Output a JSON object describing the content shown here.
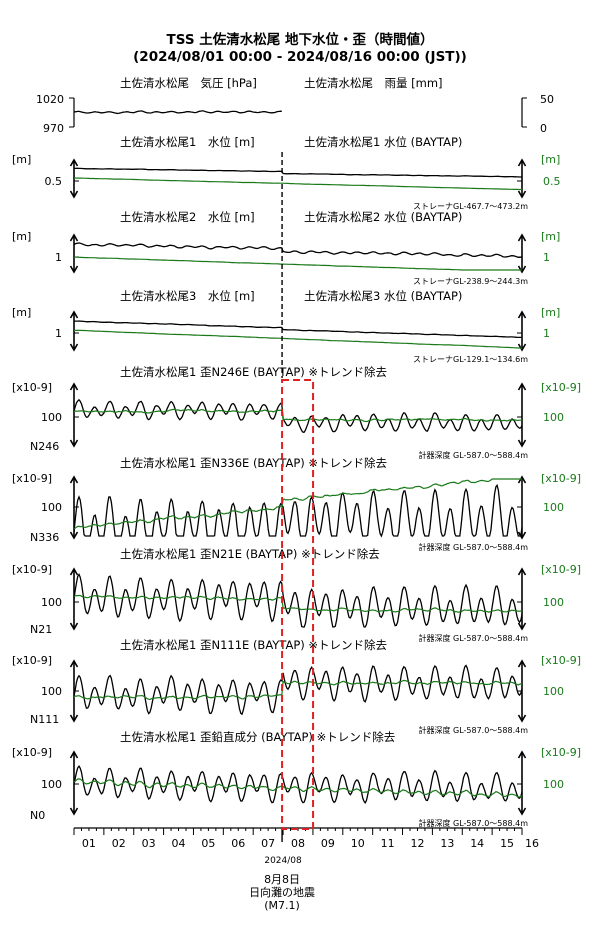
{
  "title": "TSS 土佐清水松尾 地下水位・歪（時間値）",
  "subtitle": "(2024/08/01 00:00 - 2024/08/16 00:00 (JST))",
  "colors": {
    "primary": "#000000",
    "secondary": "#1a7a1a",
    "event": "#e02020"
  },
  "x_axis": {
    "ticks": [
      "01",
      "02",
      "03",
      "04",
      "05",
      "06",
      "07",
      "08",
      "09",
      "10",
      "11",
      "12",
      "13",
      "14",
      "15",
      "16"
    ],
    "year_month": "2024/08"
  },
  "event": {
    "day": 8.0,
    "label_date": "8月8日",
    "label_name": "日向灘の地震",
    "label_mag": "(M7.1)"
  },
  "chart_data": [
    {
      "type": "line",
      "panel": "pressure_rain",
      "title_left": "土佐清水松尾　気圧 [hPa]",
      "title_right": "土佐清水松尾　雨量 [mm]",
      "left_ticks": [
        "1020",
        "970"
      ],
      "right_ticks": [
        "50",
        "0"
      ],
      "ylim_left": [
        970,
        1020
      ],
      "ylim_right": [
        0,
        50
      ],
      "series": [
        {
          "name": "気圧",
          "base": 996,
          "trend": -1,
          "amp": 1.5,
          "noise": 0.6
        }
      ]
    },
    {
      "type": "line",
      "panel": "water1",
      "title_left": "土佐清水松尾1　水位 [m]",
      "title_right": "土佐清水松尾1 水位 (BAYTAP)",
      "unit_left": "[m]",
      "unit_right": "[m]",
      "left_ticks": [
        "0.5"
      ],
      "right_ticks": [
        "0.5"
      ],
      "note": "ストレーナGL-467.7～473.2m",
      "series": [
        {
          "name": "水位",
          "base": 0.74,
          "trend": -0.12,
          "step": -0.04,
          "amp": 0.003,
          "noise": 0.002,
          "ylim": [
            0.2,
            0.9
          ]
        },
        {
          "name": "水位 (BAYTAP)",
          "base": 0.56,
          "trend": -0.22,
          "step": 0.0,
          "amp": 0.0,
          "noise": 0.002,
          "ylim": [
            0.2,
            0.9
          ]
        }
      ]
    },
    {
      "type": "line",
      "panel": "water2",
      "title_left": "土佐清水松尾2　水位 [m]",
      "title_right": "土佐清水松尾2 水位 (BAYTAP)",
      "unit_left": "[m]",
      "unit_right": "[m]",
      "left_ticks": [
        "1"
      ],
      "right_ticks": [
        "1"
      ],
      "note": "ストレーナGL-238.9～244.3m",
      "series": [
        {
          "name": "水位",
          "base": 1.36,
          "trend": -0.18,
          "step": -0.06,
          "amp": 0.025,
          "noise": 0.008,
          "ylim": [
            0.8,
            1.55
          ]
        },
        {
          "name": "水位 (BAYTAP)",
          "base": 1.1,
          "trend": -0.3,
          "step": 0.0,
          "amp": 0.0,
          "noise": 0.003,
          "ylim": [
            0.8,
            1.55
          ]
        }
      ]
    },
    {
      "type": "line",
      "panel": "water3",
      "title_left": "土佐清水松尾3　水位 [m]",
      "title_right": "土佐清水松尾3 水位 (BAYTAP)",
      "unit_left": "[m]",
      "unit_right": "[m]",
      "left_ticks": [
        "1"
      ],
      "right_ticks": [
        "1"
      ],
      "note": "ストレーナGL-129.1～134.6m",
      "series": [
        {
          "name": "水位",
          "base": 1.32,
          "trend": -0.28,
          "step": -0.04,
          "amp": 0.004,
          "noise": 0.003,
          "ylim": [
            0.75,
            1.5
          ]
        },
        {
          "name": "水位 (BAYTAP)",
          "base": 1.14,
          "trend": -0.35,
          "step": 0.0,
          "amp": 0.0,
          "noise": 0.003,
          "ylim": [
            0.75,
            1.5
          ]
        }
      ]
    },
    {
      "type": "line",
      "panel": "strain_N246E",
      "title": "土佐清水松尾1 歪N246E (BAYTAP) ※トレンド除去",
      "unit_left": "[x10-9]",
      "unit_right": "[x10-9]",
      "left_ticks": [
        "100"
      ],
      "right_ticks": [
        "100"
      ],
      "component": "N246",
      "note": "計器深度 GL-587.0～588.4m",
      "series": [
        {
          "name": "歪N246E",
          "base": 108,
          "trend": 0,
          "step": -20,
          "amp": 14,
          "noise": 2,
          "ylim": [
            50,
            150
          ]
        },
        {
          "name": "歪N246E (BAYTAP)",
          "base": 106,
          "trend": 0,
          "step": -14,
          "amp": 1,
          "noise": 1.5,
          "ylim": [
            50,
            150
          ]
        }
      ]
    },
    {
      "type": "line",
      "panel": "strain_N336E",
      "title": "土佐清水松尾1 歪N336E (BAYTAP) ※トレンド除去",
      "unit_left": "[x10-9]",
      "unit_right": "[x10-9]",
      "left_ticks": [
        "100"
      ],
      "right_ticks": [
        "100"
      ],
      "component": "N336",
      "note": "計器深度 GL-587.0～588.4m",
      "series": [
        {
          "name": "歪N336E",
          "base": 70,
          "trend": 10,
          "step": 8,
          "amp": 50,
          "noise": 3,
          "ylim": [
            55,
            160
          ]
        },
        {
          "name": "歪N336E (BAYTAP)",
          "base": 72,
          "trend": 75,
          "step": 14,
          "amp": 2,
          "noise": 2,
          "ylim": [
            55,
            160
          ]
        }
      ]
    },
    {
      "type": "line",
      "panel": "strain_N21E",
      "title": "土佐清水松尾1 歪N21E (BAYTAP) ※トレンド除去",
      "unit_left": "[x10-9]",
      "unit_right": "[x10-9]",
      "left_ticks": [
        "100"
      ],
      "right_ticks": [
        "100"
      ],
      "component": "N21",
      "note": "計器深度 GL-587.0～588.4m",
      "series": [
        {
          "name": "歪N21E",
          "base": 105,
          "trend": -5,
          "step": -12,
          "amp": 32,
          "noise": 2,
          "ylim": [
            55,
            150
          ]
        },
        {
          "name": "歪N21E (BAYTAP)",
          "base": 107,
          "trend": -8,
          "step": -16,
          "amp": 1.5,
          "noise": 1.5,
          "ylim": [
            55,
            150
          ]
        }
      ]
    },
    {
      "type": "line",
      "panel": "strain_N111E",
      "title": "土佐清水松尾1 歪N111E (BAYTAP) ※トレンド除去",
      "unit_left": "[x10-9]",
      "unit_right": "[x10-9]",
      "left_ticks": [
        "100"
      ],
      "right_ticks": [
        "100"
      ],
      "component": "N111",
      "note": "計器深度 GL-587.0～588.4m",
      "series": [
        {
          "name": "歪N111E",
          "base": 97,
          "trend": 0,
          "step": 16,
          "amp": 24,
          "noise": 2,
          "ylim": [
            60,
            145
          ]
        },
        {
          "name": "歪N111E (BAYTAP)",
          "base": 94,
          "trend": 0,
          "step": 20,
          "amp": 1.5,
          "noise": 1.5,
          "ylim": [
            60,
            145
          ]
        }
      ]
    },
    {
      "type": "line",
      "panel": "strain_vertical",
      "title": "土佐清水松尾1 歪鉛直成分 (BAYTAP) ※トレンド除去",
      "unit_left": "[x10-9]",
      "unit_right": "[x10-9]",
      "left_ticks": [
        "100"
      ],
      "right_ticks": [
        "100"
      ],
      "component": "N0",
      "note": "計器深度 GL-587.0～588.4m",
      "series": [
        {
          "name": "歪鉛直成分",
          "base": 102,
          "trend": -8,
          "step": 0,
          "amp": 20,
          "noise": 2,
          "ylim": [
            60,
            145
          ]
        },
        {
          "name": "歪鉛直成分 (BAYTAP)",
          "base": 104,
          "trend": -18,
          "step": 0,
          "amp": 3,
          "noise": 1.5,
          "ylim": [
            60,
            145
          ]
        }
      ]
    }
  ]
}
